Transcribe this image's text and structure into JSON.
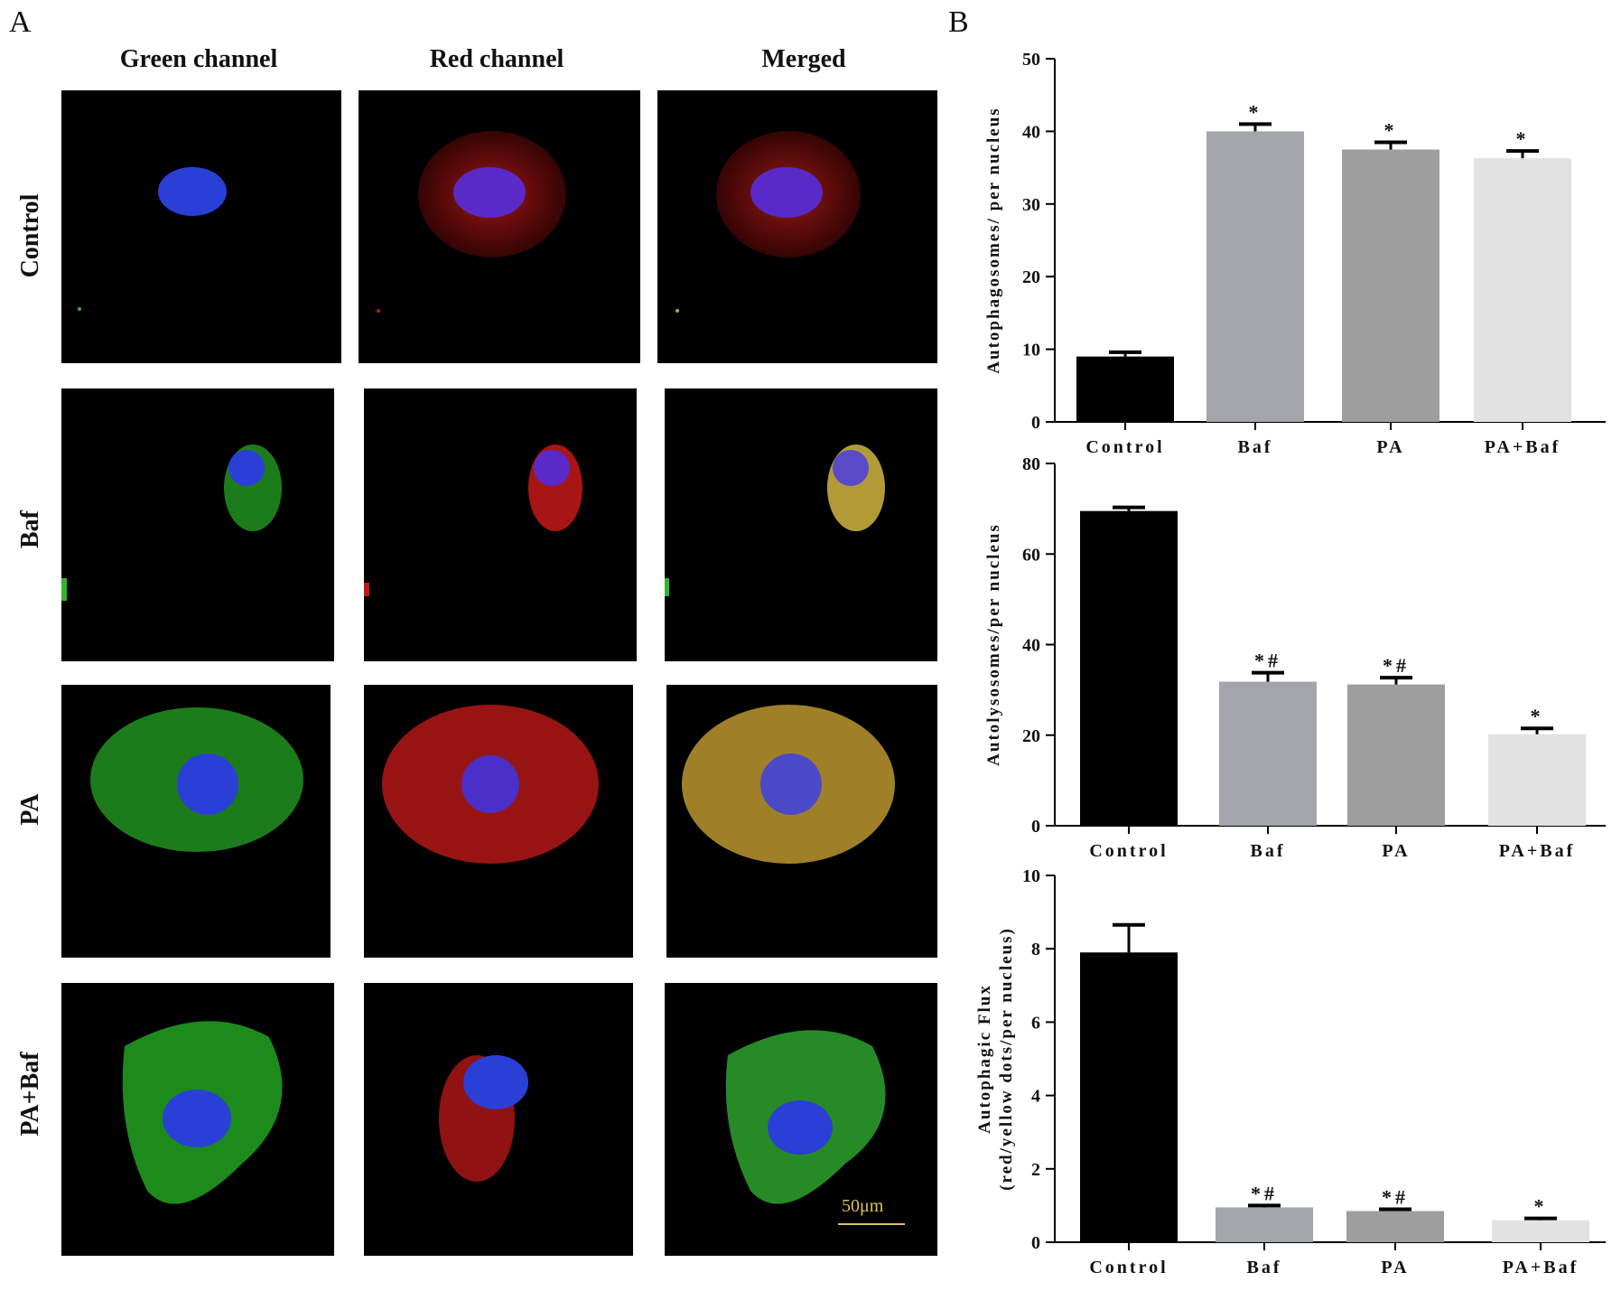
{
  "panel_a": {
    "letter": "A",
    "columns": [
      "Green channel",
      "Red channel",
      "Merged"
    ],
    "rows": [
      "Control",
      "Baf",
      "PA",
      "PA+Baf"
    ],
    "scale_bar_label": "50μm",
    "colors": {
      "nucleus": "#2a3fd6",
      "green": "#2fb52f",
      "red": "#c01818",
      "merged_yellow": "#b9a33a",
      "scale_bar": "#d8c25a"
    }
  },
  "panel_b": {
    "letter": "B"
  },
  "chart_data": [
    {
      "type": "bar",
      "categories": [
        "Control",
        "Baf",
        "PA",
        "PA+Baf"
      ],
      "values": [
        9,
        40,
        37.5,
        36.3
      ],
      "errors": [
        0.6,
        1.0,
        1.0,
        1.0
      ],
      "annotations": [
        "",
        "*",
        "*",
        "*"
      ],
      "ylabel": "Autophagosomes/ per nucleus",
      "ylim": [
        0,
        50
      ],
      "yticks": [
        0,
        10,
        20,
        30,
        40,
        50
      ],
      "colors": [
        "#000000",
        "#a4a4ac",
        "#9e9e9e",
        "#e2e2e2"
      ],
      "grid": false
    },
    {
      "type": "bar",
      "categories": [
        "Control",
        "Baf",
        "PA",
        "PA+Baf"
      ],
      "values": [
        69.5,
        31.8,
        31.2,
        20.2
      ],
      "errors": [
        0.8,
        2.0,
        1.5,
        1.3
      ],
      "annotations": [
        "",
        "*#",
        "*#",
        "*"
      ],
      "ylabel": "Autolysosomes/per nucleus",
      "ylim": [
        0,
        80
      ],
      "yticks": [
        0,
        20,
        40,
        60,
        80
      ],
      "colors": [
        "#000000",
        "#a4a4ac",
        "#9e9e9e",
        "#e2e2e2"
      ],
      "grid": false
    },
    {
      "type": "bar",
      "categories": [
        "Control",
        "Baf",
        "PA",
        "PA+Baf"
      ],
      "values": [
        7.9,
        0.95,
        0.85,
        0.6
      ],
      "errors": [
        0.75,
        0.05,
        0.05,
        0.05
      ],
      "annotations": [
        "",
        "*#",
        "*#",
        "*"
      ],
      "ylabel": "Autophagic Flux",
      "ylabel2": "(red/yellow dots/per nucleus)",
      "ylim": [
        0,
        10
      ],
      "yticks": [
        0,
        2,
        4,
        6,
        8,
        10
      ],
      "colors": [
        "#000000",
        "#a4a4ac",
        "#9e9e9e",
        "#e2e2e2"
      ],
      "grid": false
    }
  ]
}
